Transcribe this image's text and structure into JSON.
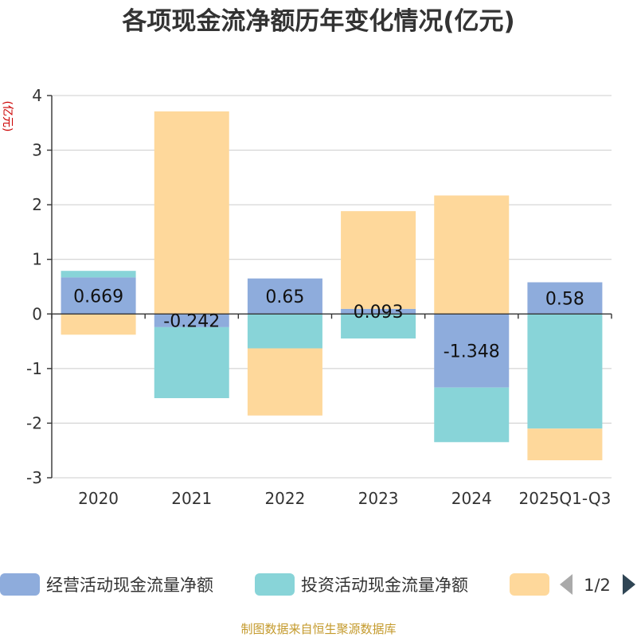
{
  "chart_data": {
    "type": "bar",
    "stacked": true,
    "title": "各项现金流净额历年变化情况(亿元)",
    "ylabel": "(亿元)",
    "xlabel": "",
    "categories": [
      "2020",
      "2021",
      "2022",
      "2023",
      "2024",
      "2025Q1-Q3"
    ],
    "ylim": [
      -3,
      4
    ],
    "yticks": [
      -3,
      -2,
      -1,
      0,
      1,
      2,
      3,
      4
    ],
    "grid": true,
    "series": [
      {
        "name": "经营活动现金流量净额",
        "color": "#8eacdc",
        "values": [
          0.669,
          -0.242,
          0.65,
          0.093,
          -1.348,
          0.58
        ],
        "labels": [
          "0.669",
          "-0.242",
          "0.65",
          "0.093",
          "-1.348",
          "0.58"
        ]
      },
      {
        "name": "投资活动现金流量净额",
        "color": "#88d4d8",
        "values": [
          0.12,
          -1.3,
          -0.63,
          -0.45,
          -1.0,
          -2.1
        ]
      },
      {
        "name": "",
        "color": "#fed89b",
        "values": [
          -0.38,
          3.71,
          -1.23,
          1.79,
          2.17,
          -0.58
        ]
      }
    ],
    "legend": {
      "position": "bottom",
      "page": "1/2"
    }
  },
  "source_text": "制图数据来自恒生聚源数据库"
}
